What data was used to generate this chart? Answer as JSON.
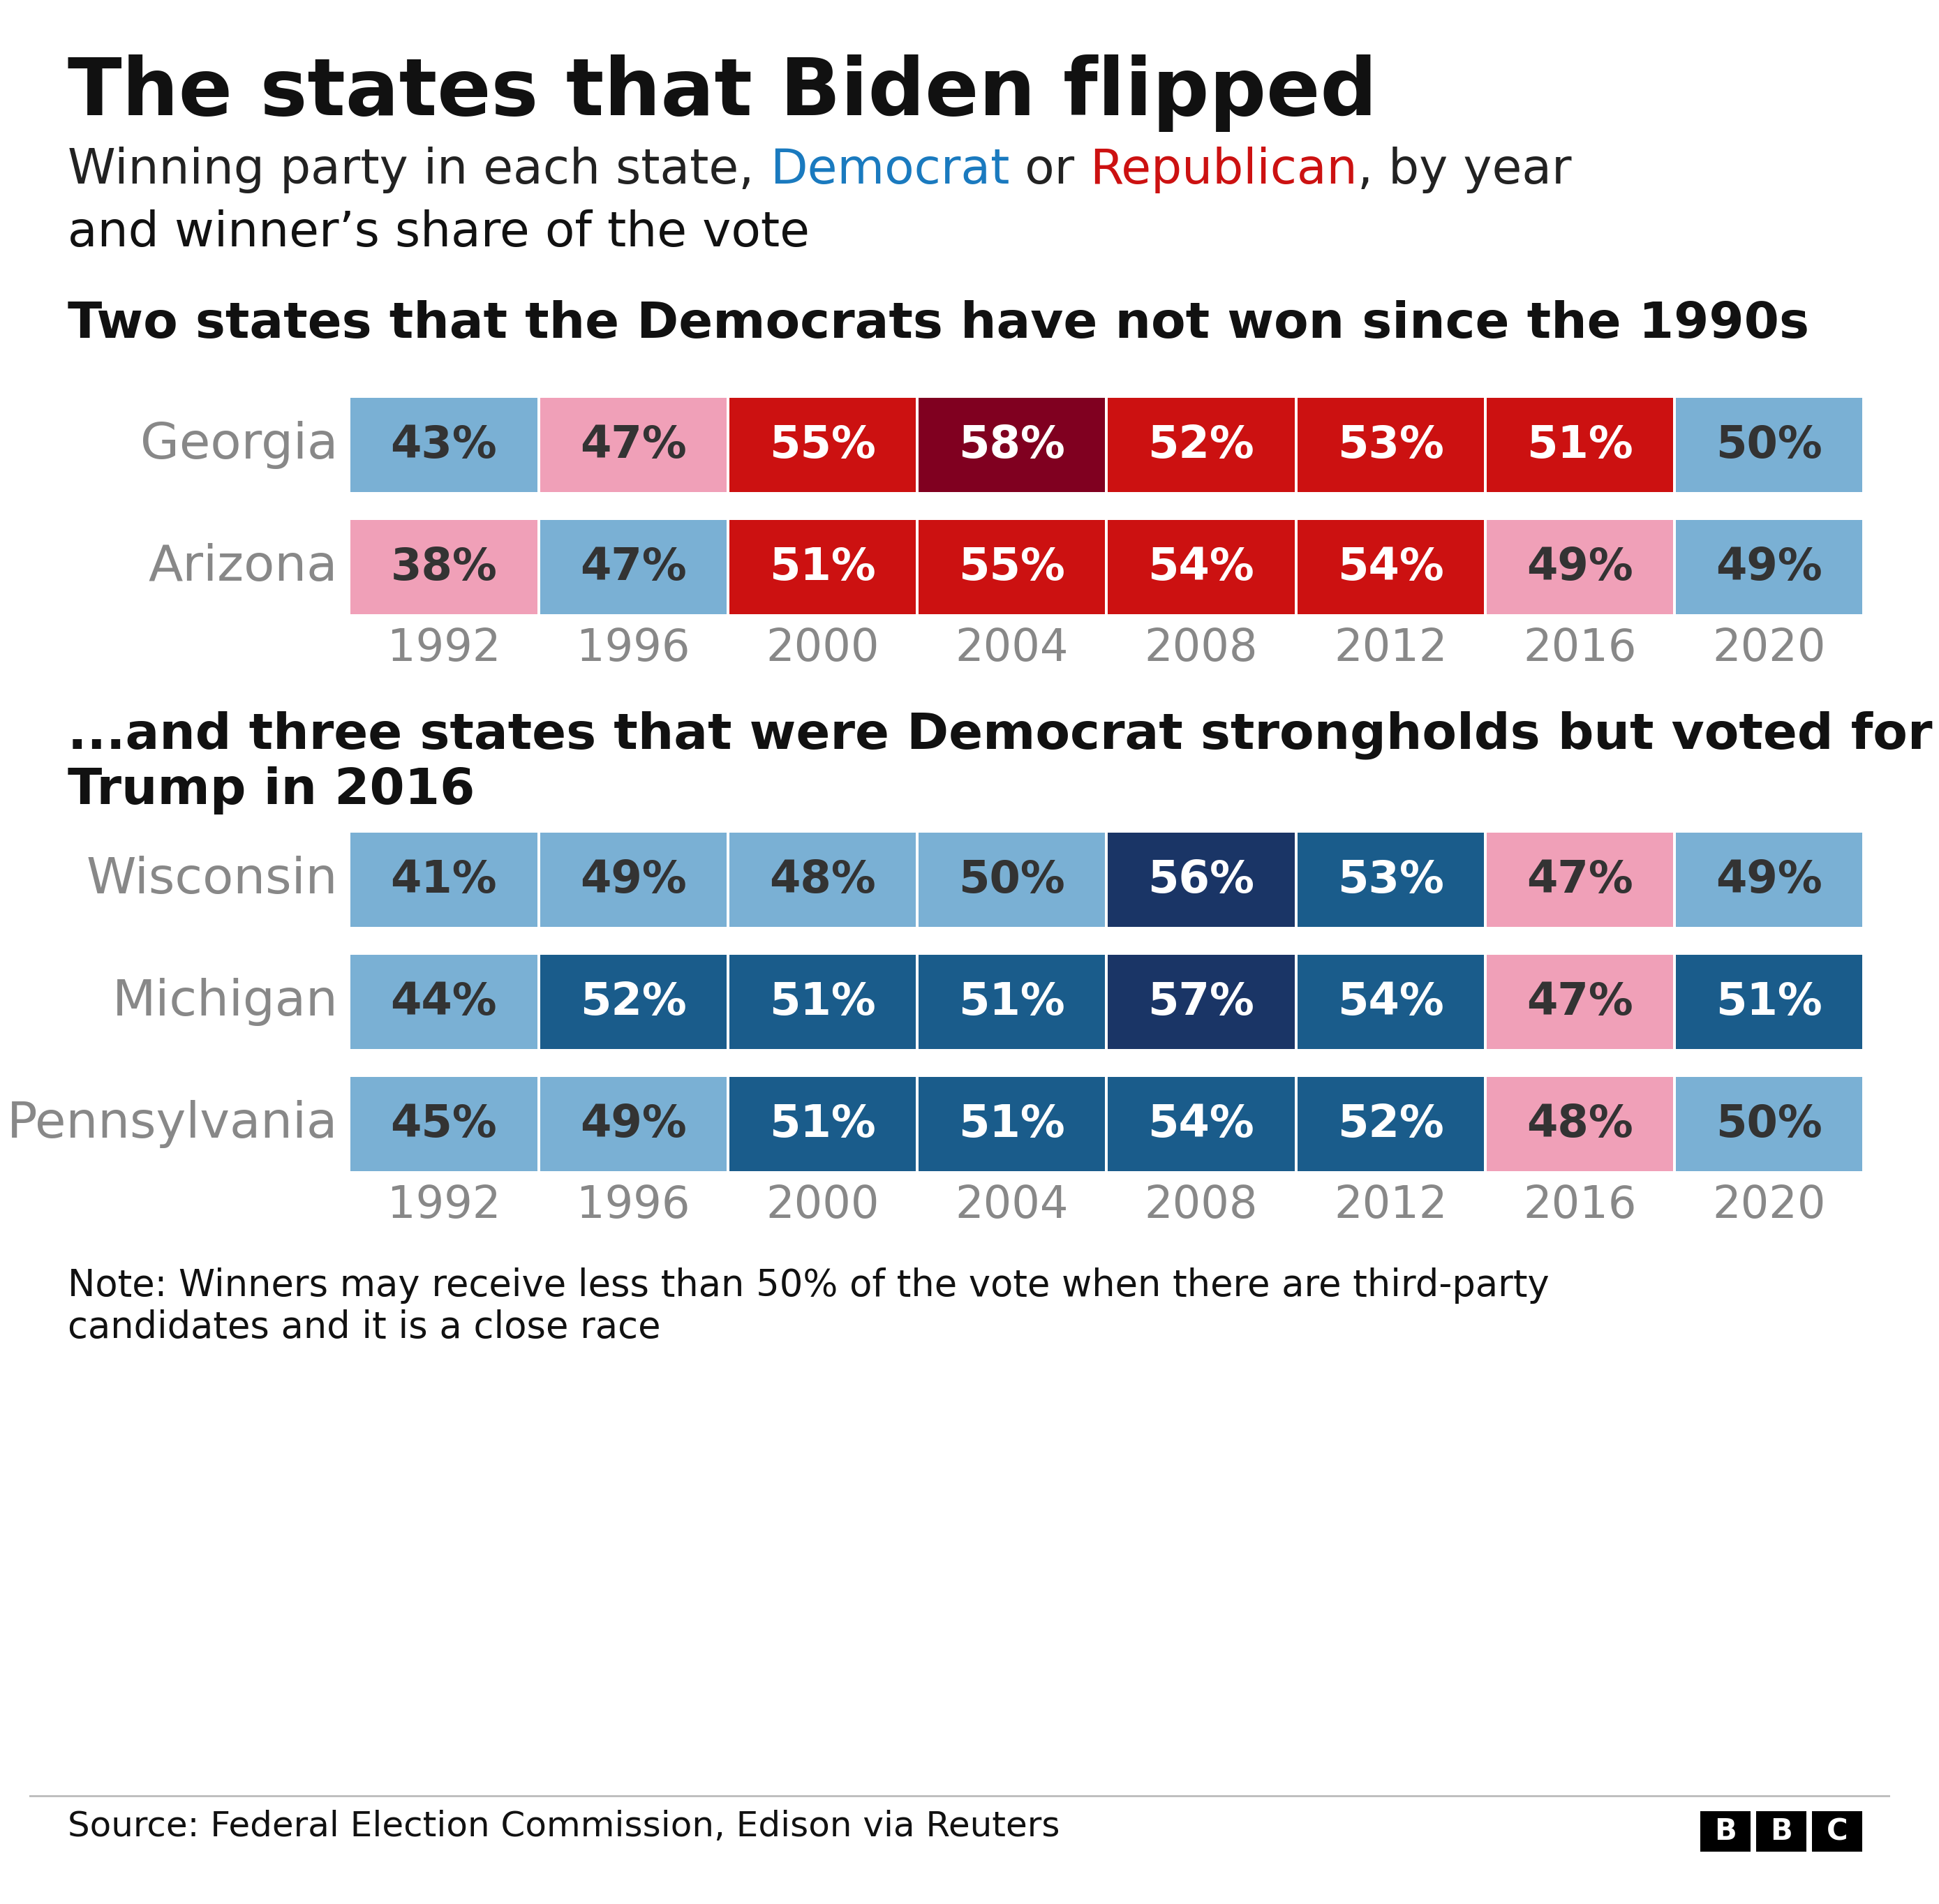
{
  "title": "The states that Biden flipped",
  "subtitle_parts": [
    {
      "text": "Winning party in each state, ",
      "color": "#222222"
    },
    {
      "text": "Democrat",
      "color": "#1a7abf"
    },
    {
      "text": " or ",
      "color": "#222222"
    },
    {
      "text": "Republican",
      "color": "#cc1111"
    },
    {
      "text": ", by year",
      "color": "#222222"
    }
  ],
  "subtitle_line2": "and winner’s share of the vote",
  "section1_title": "Two states that the Democrats have not won since the 1990s",
  "section2_title": "...and three states that were Democrat strongholds but voted for\nTrump in 2016",
  "years": [
    "1992",
    "1996",
    "2000",
    "2004",
    "2008",
    "2012",
    "2016",
    "2020"
  ],
  "group1": {
    "Georgia": {
      "values": [
        "43%",
        "47%",
        "55%",
        "58%",
        "52%",
        "53%",
        "51%",
        "50%"
      ],
      "colors": [
        "#7ab0d4",
        "#f0a0b8",
        "#cc1111",
        "#800020",
        "#cc1111",
        "#cc1111",
        "#cc1111",
        "#7ab0d4"
      ],
      "text_colors": [
        "#333333",
        "#333333",
        "#ffffff",
        "#ffffff",
        "#ffffff",
        "#ffffff",
        "#ffffff",
        "#333333"
      ]
    },
    "Arizona": {
      "values": [
        "38%",
        "47%",
        "51%",
        "55%",
        "54%",
        "54%",
        "49%",
        "49%"
      ],
      "colors": [
        "#f0a0b8",
        "#7ab0d4",
        "#cc1111",
        "#cc1111",
        "#cc1111",
        "#cc1111",
        "#f0a0b8",
        "#7ab0d4"
      ],
      "text_colors": [
        "#333333",
        "#333333",
        "#ffffff",
        "#ffffff",
        "#ffffff",
        "#ffffff",
        "#333333",
        "#333333"
      ]
    }
  },
  "group2": {
    "Wisconsin": {
      "values": [
        "41%",
        "49%",
        "48%",
        "50%",
        "56%",
        "53%",
        "47%",
        "49%"
      ],
      "colors": [
        "#7ab0d4",
        "#7ab0d4",
        "#7ab0d4",
        "#7ab0d4",
        "#1a3566",
        "#1a5c8b",
        "#f0a0b8",
        "#7ab0d4"
      ],
      "text_colors": [
        "#333333",
        "#333333",
        "#333333",
        "#333333",
        "#ffffff",
        "#ffffff",
        "#333333",
        "#333333"
      ]
    },
    "Michigan": {
      "values": [
        "44%",
        "52%",
        "51%",
        "51%",
        "57%",
        "54%",
        "47%",
        "51%"
      ],
      "colors": [
        "#7ab0d4",
        "#1a5c8b",
        "#1a5c8b",
        "#1a5c8b",
        "#1a3566",
        "#1a5c8b",
        "#f0a0b8",
        "#1a5c8b"
      ],
      "text_colors": [
        "#333333",
        "#ffffff",
        "#ffffff",
        "#ffffff",
        "#ffffff",
        "#ffffff",
        "#333333",
        "#ffffff"
      ]
    },
    "Pennsylvania": {
      "values": [
        "45%",
        "49%",
        "51%",
        "51%",
        "54%",
        "52%",
        "48%",
        "50%"
      ],
      "colors": [
        "#7ab0d4",
        "#7ab0d4",
        "#1a5c8b",
        "#1a5c8b",
        "#1a5c8b",
        "#1a5c8b",
        "#f0a0b8",
        "#7ab0d4"
      ],
      "text_colors": [
        "#333333",
        "#333333",
        "#ffffff",
        "#ffffff",
        "#ffffff",
        "#ffffff",
        "#333333",
        "#333333"
      ]
    }
  },
  "note": "Note: Winners may receive less than 50% of the vote when there are third-party\ncandidates and it is a close race",
  "source": "Source: Federal Election Commission, Edison via Reuters",
  "bg_color": "#ffffff",
  "text_dark": "#111111",
  "text_gray": "#888888"
}
